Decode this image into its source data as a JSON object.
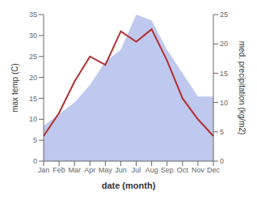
{
  "chart_data": {
    "type": "line",
    "xlabel": "date (month)",
    "ylabel": "max temp (C)",
    "y2label": "med. precipitation (kg/m2)",
    "categories": [
      "Jan",
      "Feb",
      "Mar",
      "Apr",
      "May",
      "Jun",
      "Jul",
      "Aug",
      "Sep",
      "Oct",
      "Nov",
      "Dec"
    ],
    "series": [
      {
        "type": "area",
        "axis": "y2",
        "color": "#bfc8ee",
        "values": [
          6,
          8,
          10,
          13,
          17,
          19,
          25,
          24,
          19,
          15,
          11,
          11
        ]
      },
      {
        "type": "line",
        "color": "#b03030",
        "values": [
          6,
          11.5,
          19,
          25,
          23,
          31,
          28.5,
          31.5,
          24,
          15,
          10,
          6
        ]
      }
    ],
    "ylim": [
      0,
      35
    ],
    "yticks": [
      0,
      5,
      10,
      15,
      20,
      25,
      30,
      35
    ],
    "y2lim": [
      0,
      25
    ],
    "y2ticks": [
      0,
      5,
      10,
      15,
      20,
      25
    ],
    "grid": false
  }
}
